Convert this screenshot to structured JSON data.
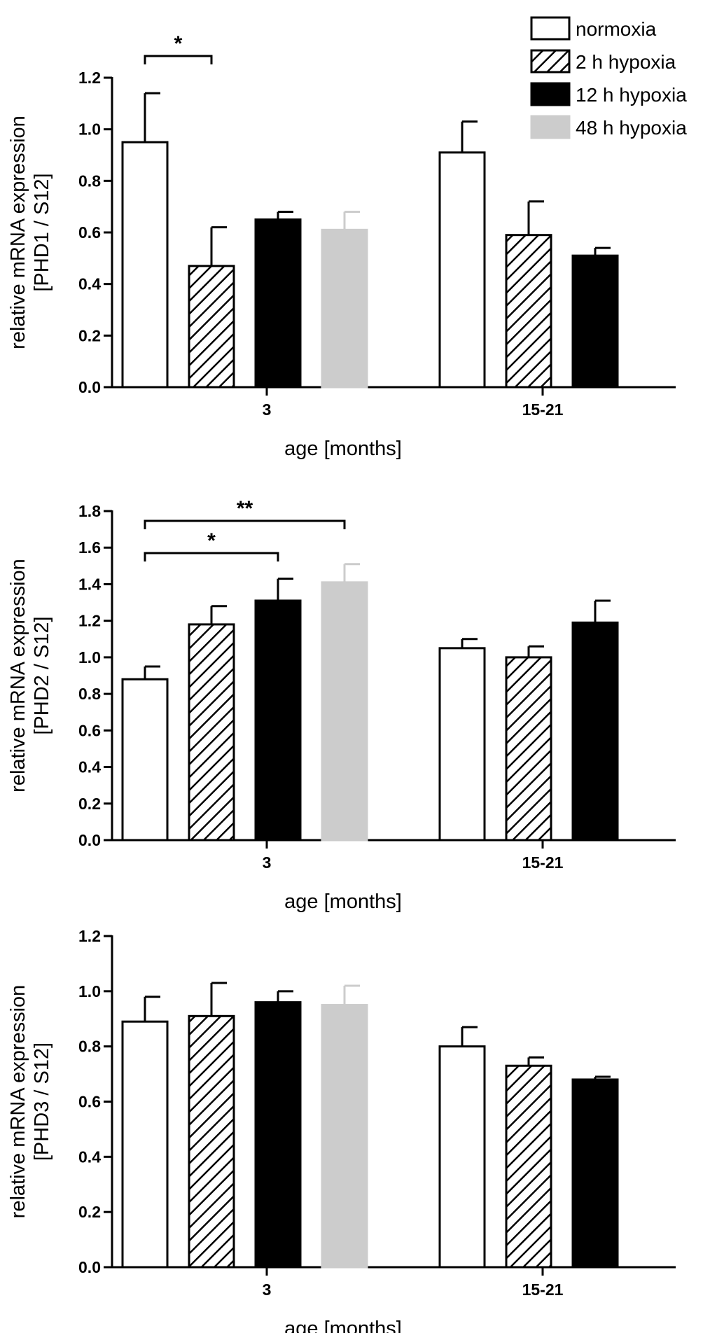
{
  "legend": {
    "entries": [
      {
        "label": "normoxia",
        "fill": "white"
      },
      {
        "label": "2 h hypoxia",
        "fill": "hatch"
      },
      {
        "label": "12 h hypoxia",
        "fill": "black"
      },
      {
        "label": "48 h hypoxia",
        "fill": "gray"
      }
    ]
  },
  "colors": {
    "white": "#ffffff",
    "black": "#000000",
    "gray": "#cccccc",
    "axis": "#000000"
  },
  "chart_data": [
    {
      "type": "bar",
      "ylabel": [
        "relative mRNA expression",
        "[PHD1 / S12]"
      ],
      "xlabel": "age [months]",
      "ylim": [
        0,
        1.2
      ],
      "yticks": [
        0.0,
        0.2,
        0.4,
        0.6,
        0.8,
        1.0,
        1.2
      ],
      "ytick_labels": [
        "0.0",
        "0.2",
        "0.4",
        "0.6",
        "0.8",
        "1.0",
        "1.2"
      ],
      "groups": [
        {
          "label": "3",
          "bars": [
            {
              "series": "normoxia",
              "value": 0.95,
              "error": 0.19
            },
            {
              "series": "2 h hypoxia",
              "value": 0.47,
              "error": 0.15
            },
            {
              "series": "12 h hypoxia",
              "value": 0.65,
              "error": 0.03
            },
            {
              "series": "48 h hypoxia",
              "value": 0.61,
              "error": 0.07
            }
          ]
        },
        {
          "label": "15-21",
          "bars": [
            {
              "series": "normoxia",
              "value": 0.91,
              "error": 0.12
            },
            {
              "series": "2 h hypoxia",
              "value": 0.59,
              "error": 0.13
            },
            {
              "series": "12 h hypoxia",
              "value": 0.51,
              "error": 0.03
            }
          ]
        }
      ],
      "significance": [
        {
          "group": 0,
          "from": 0,
          "to": 1,
          "label": "*"
        }
      ]
    },
    {
      "type": "bar",
      "ylabel": [
        "relative mRNA expression",
        "[PHD2 / S12]"
      ],
      "xlabel": "age [months]",
      "ylim": [
        0,
        1.8
      ],
      "yticks": [
        0.0,
        0.2,
        0.4,
        0.6,
        0.8,
        1.0,
        1.2,
        1.4,
        1.6,
        1.8
      ],
      "ytick_labels": [
        "0.0",
        "0.2",
        "0.4",
        "0.6",
        "0.8",
        "1.0",
        "1.2",
        "1.4",
        "1.6",
        "1.8"
      ],
      "groups": [
        {
          "label": "3",
          "bars": [
            {
              "series": "normoxia",
              "value": 0.88,
              "error": 0.07
            },
            {
              "series": "2 h hypoxia",
              "value": 1.18,
              "error": 0.1
            },
            {
              "series": "12 h hypoxia",
              "value": 1.31,
              "error": 0.12
            },
            {
              "series": "48 h hypoxia",
              "value": 1.41,
              "error": 0.1
            }
          ]
        },
        {
          "label": "15-21",
          "bars": [
            {
              "series": "normoxia",
              "value": 1.05,
              "error": 0.05
            },
            {
              "series": "2 h hypoxia",
              "value": 1.0,
              "error": 0.06
            },
            {
              "series": "12 h hypoxia",
              "value": 1.19,
              "error": 0.12
            }
          ]
        }
      ],
      "significance": [
        {
          "group": 0,
          "from": 0,
          "to": 2,
          "label": "*"
        },
        {
          "group": 0,
          "from": 0,
          "to": 3,
          "label": "**"
        }
      ]
    },
    {
      "type": "bar",
      "ylabel": [
        "relative mRNA expression",
        "[PHD3 / S12]"
      ],
      "xlabel": "age [months]",
      "ylim": [
        0,
        1.2
      ],
      "yticks": [
        0.0,
        0.2,
        0.4,
        0.6,
        0.8,
        1.0,
        1.2
      ],
      "ytick_labels": [
        "0.0",
        "0.2",
        "0.4",
        "0.6",
        "0.8",
        "1.0",
        "1.2"
      ],
      "groups": [
        {
          "label": "3",
          "bars": [
            {
              "series": "normoxia",
              "value": 0.89,
              "error": 0.09
            },
            {
              "series": "2 h hypoxia",
              "value": 0.91,
              "error": 0.12
            },
            {
              "series": "12 h hypoxia",
              "value": 0.96,
              "error": 0.04
            },
            {
              "series": "48 h hypoxia",
              "value": 0.95,
              "error": 0.07
            }
          ]
        },
        {
          "label": "15-21",
          "bars": [
            {
              "series": "normoxia",
              "value": 0.8,
              "error": 0.07
            },
            {
              "series": "2 h hypoxia",
              "value": 0.73,
              "error": 0.03
            },
            {
              "series": "12 h hypoxia",
              "value": 0.68,
              "error": 0.01
            }
          ]
        }
      ],
      "significance": []
    }
  ]
}
